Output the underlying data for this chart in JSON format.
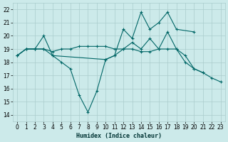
{
  "xlabel": "Humidex (Indice chaleur)",
  "background_color": "#cceaea",
  "grid_color": "#aacccc",
  "line_color": "#006666",
  "xlim": [
    -0.5,
    23.5
  ],
  "ylim": [
    13.5,
    22.5
  ],
  "yticks": [
    14,
    15,
    16,
    17,
    18,
    19,
    20,
    21,
    22
  ],
  "xticks": [
    0,
    1,
    2,
    3,
    4,
    5,
    6,
    7,
    8,
    9,
    10,
    11,
    12,
    13,
    14,
    15,
    16,
    17,
    18,
    19,
    20,
    21,
    22,
    23
  ],
  "series": [
    {
      "x": [
        0,
        1,
        2,
        3,
        4,
        5,
        6,
        7,
        8,
        9,
        10,
        11,
        12,
        13,
        14,
        15,
        16,
        17,
        18,
        19,
        20,
        21
      ],
      "y": [
        18.5,
        19.0,
        19.0,
        19.0,
        18.5,
        18.0,
        17.5,
        15.5,
        14.2,
        15.8,
        18.2,
        18.5,
        19.0,
        19.5,
        19.0,
        19.8,
        19.0,
        20.3,
        19.0,
        18.0,
        17.5,
        17.2
      ]
    },
    {
      "x": [
        0,
        1,
        2,
        3,
        4,
        10,
        11,
        12,
        13,
        14,
        15,
        16,
        17,
        18,
        20
      ],
      "y": [
        18.5,
        19.0,
        19.0,
        20.0,
        18.5,
        18.2,
        18.5,
        20.5,
        19.8,
        21.8,
        20.5,
        21.0,
        21.8,
        20.5,
        20.3
      ]
    },
    {
      "x": [
        0,
        1,
        2,
        3,
        4,
        5,
        6,
        7,
        8,
        9,
        10,
        11,
        12,
        13,
        14,
        15,
        16,
        17,
        18,
        19,
        20,
        21,
        22,
        23
      ],
      "y": [
        18.5,
        19.0,
        19.0,
        19.0,
        18.8,
        19.0,
        19.0,
        19.2,
        19.2,
        19.2,
        19.2,
        19.0,
        19.0,
        19.0,
        18.8,
        18.8,
        19.0,
        19.0,
        19.0,
        18.5,
        17.5,
        17.2,
        16.8,
        16.5
      ]
    }
  ]
}
